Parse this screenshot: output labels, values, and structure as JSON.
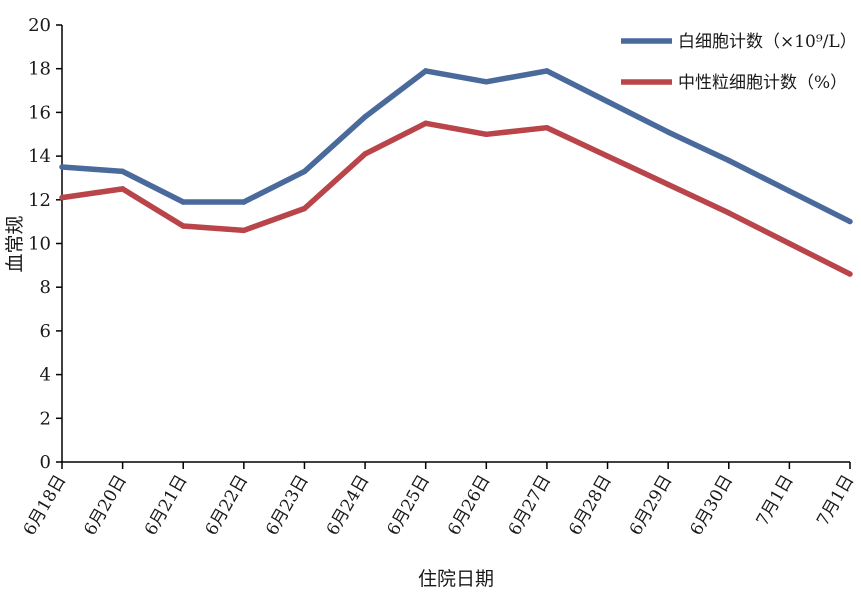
{
  "chart_data": {
    "type": "line",
    "title": "",
    "xlabel": "住院日期",
    "ylabel": "血常规",
    "ylim": [
      0,
      20
    ],
    "yticks": [
      0,
      2,
      4,
      6,
      8,
      10,
      12,
      14,
      16,
      18,
      20
    ],
    "grid": false,
    "legend_position": "top-right",
    "categories": [
      "6月18日",
      "6月20日",
      "6月21日",
      "6月22日",
      "6月23日",
      "6月24日",
      "6月25日",
      "6月26日",
      "6月27日",
      "6月28日",
      "6月29日",
      "6月30日",
      "7月1日",
      "7月1日"
    ],
    "series": [
      {
        "name": "白细胞计数（×10⁹/L）",
        "color": "#4a6a9c",
        "values": [
          13.5,
          13.3,
          11.9,
          11.9,
          13.3,
          15.8,
          17.9,
          17.4,
          17.9,
          16.5,
          15.1,
          13.8,
          12.4,
          11.0
        ]
      },
      {
        "name": "中性粒细胞计数（%）",
        "color": "#b9444a",
        "values": [
          12.1,
          12.5,
          10.8,
          10.6,
          11.6,
          14.1,
          15.5,
          15.0,
          15.3,
          14.0,
          12.7,
          11.4,
          10.0,
          8.6
        ]
      }
    ]
  }
}
